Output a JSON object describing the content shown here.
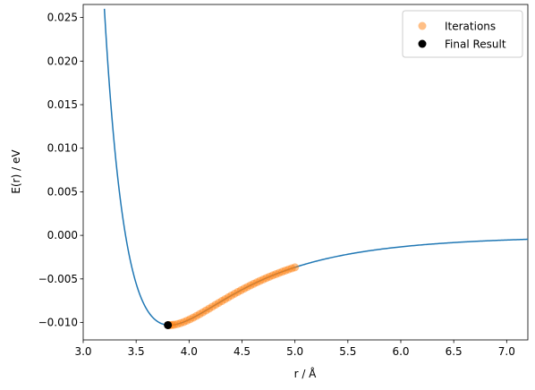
{
  "chart_data": {
    "type": "line",
    "xlabel": "r / Å",
    "ylabel": "E(r) / eV",
    "xlim": [
      3.0,
      7.2
    ],
    "ylim": [
      -0.012,
      0.0265
    ],
    "xticks": [
      "3.0",
      "3.5",
      "4.0",
      "4.5",
      "5.0",
      "5.5",
      "6.0",
      "6.5",
      "7.0"
    ],
    "yticks": [
      "−0.010",
      "−0.005",
      "0.000",
      "0.005",
      "0.010",
      "0.015",
      "0.020",
      "0.025"
    ],
    "grid": false,
    "legend_position": "top-right",
    "colors": {
      "curve": "#1f77b4",
      "iterations": "#ff7f0e",
      "final": "#000000"
    },
    "curve": {
      "function": "lennard-jones",
      "epsilon": 0.0103,
      "sigma": 3.4,
      "x_range": [
        3.2,
        7.2
      ]
    },
    "series": [
      {
        "name": "Iterations",
        "marker": "circle",
        "x": [
          5.0,
          4.97,
          4.94,
          4.91,
          4.88,
          4.85,
          4.82,
          4.79,
          4.76,
          4.73,
          4.7,
          4.67,
          4.64,
          4.61,
          4.58,
          4.55,
          4.52,
          4.49,
          4.46,
          4.43,
          4.4,
          4.37,
          4.34,
          4.31,
          4.28,
          4.25,
          4.22,
          4.19,
          4.16,
          4.13,
          4.1,
          4.07,
          4.04,
          4.01,
          3.98,
          3.95,
          3.92,
          3.89,
          3.86,
          3.84,
          3.82,
          3.81
        ]
      },
      {
        "name": "Final Result",
        "marker": "circle",
        "x": [
          3.8
        ],
        "y": [
          -0.0103
        ]
      }
    ]
  }
}
